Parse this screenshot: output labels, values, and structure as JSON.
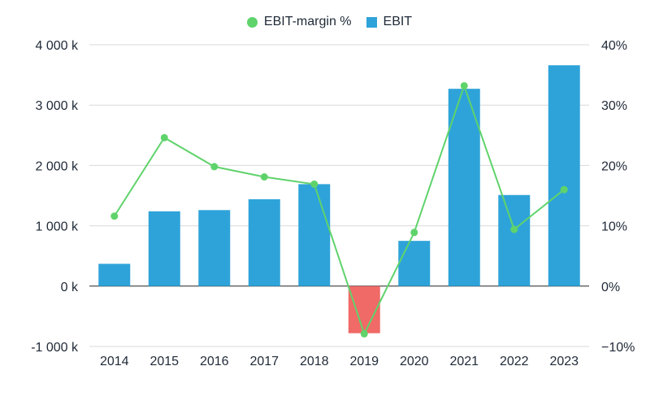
{
  "chart_data": {
    "type": "bar",
    "categories": [
      "2014",
      "2015",
      "2016",
      "2017",
      "2018",
      "2019",
      "2020",
      "2021",
      "2022",
      "2023"
    ],
    "series": [
      {
        "name": "EBIT",
        "type": "bar",
        "axis": "left",
        "color": "#2ea3d9",
        "negative_color": "#f06a67",
        "values": [
          370,
          1240,
          1260,
          1440,
          1690,
          -780,
          750,
          3270,
          1510,
          3660
        ]
      },
      {
        "name": "EBIT-margin %",
        "type": "line",
        "axis": "right",
        "color": "#5fd36b",
        "values": [
          11.6,
          24.6,
          19.8,
          18.1,
          16.9,
          -7.9,
          8.9,
          33.2,
          9.4,
          16.0
        ]
      }
    ],
    "left_axis": {
      "ylim": [
        -1000,
        4000
      ],
      "ticks": [
        4000,
        3000,
        2000,
        1000,
        0,
        -1000
      ],
      "tick_labels": [
        "4 000 k",
        "3 000 k",
        "2 000 k",
        "1 000 k",
        "0 k",
        "-1 000 k"
      ]
    },
    "right_axis": {
      "ylim": [
        -10,
        40
      ],
      "ticks": [
        40,
        30,
        20,
        10,
        0,
        -10
      ],
      "tick_labels": [
        "40%",
        "30%",
        "20%",
        "10%",
        "0%",
        "−10%"
      ]
    },
    "grid": true,
    "legend": "top-center"
  },
  "legend": {
    "line_label": "EBIT-margin %",
    "bar_label": "EBIT"
  }
}
